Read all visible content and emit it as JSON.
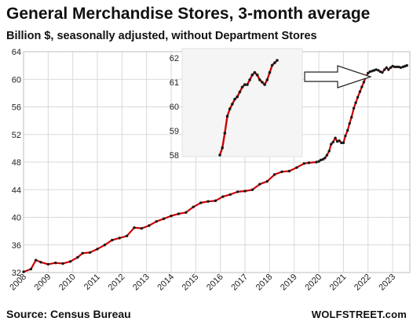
{
  "title": "General Merchandise Stores, 3-month average",
  "subtitle": "Billion $, seasonally adjusted, without Department Stores",
  "source": "Source: Census Bureau",
  "brand": "WOLFSTREET.com",
  "colors": {
    "line": "#cc0000",
    "markers": "#1a1a1a",
    "grid": "#d9d9d9",
    "inset_bg": "#f5f5f5"
  },
  "chart_data": [
    {
      "type": "line",
      "title": "General Merchandise Stores, 3-month average",
      "ylabel": "Billion $, seasonally adjusted, without Department Stores",
      "xlim": [
        2008,
        2023.7
      ],
      "ylim": [
        32,
        64
      ],
      "y_ticks": [
        32,
        36,
        40,
        44,
        48,
        52,
        56,
        60,
        64
      ],
      "x_ticks": [
        "2008",
        "2009",
        "2010",
        "2011",
        "2012",
        "2013",
        "2014",
        "2015",
        "2016",
        "2017",
        "2018",
        "2019",
        "2020",
        "2021",
        "2022",
        "2023"
      ],
      "grid": true,
      "x": [
        2008.0,
        2008.3,
        2008.5,
        2008.7,
        2009.0,
        2009.3,
        2009.6,
        2009.9,
        2010.2,
        2010.4,
        2010.7,
        2011.0,
        2011.3,
        2011.6,
        2011.9,
        2012.2,
        2012.5,
        2012.8,
        2013.1,
        2013.4,
        2013.7,
        2014.0,
        2014.3,
        2014.6,
        2014.9,
        2015.2,
        2015.5,
        2015.8,
        2016.1,
        2016.4,
        2016.7,
        2017.0,
        2017.3,
        2017.6,
        2017.9,
        2018.2,
        2018.5,
        2018.8,
        2019.1,
        2019.4,
        2019.6,
        2019.9,
        2020.0,
        2020.08,
        2020.17,
        2020.25,
        2020.33,
        2020.42,
        2020.5,
        2020.58,
        2020.67,
        2020.75,
        2020.83,
        2020.92,
        2021.0,
        2021.08,
        2021.17,
        2021.25,
        2021.33,
        2021.42,
        2021.5,
        2021.58,
        2021.67,
        2021.75,
        2021.83,
        2021.92,
        2022.0,
        2022.08,
        2022.17,
        2022.25,
        2022.33,
        2022.42,
        2022.5,
        2022.58,
        2022.67,
        2022.75,
        2022.83,
        2022.92,
        2023.0,
        2023.08,
        2023.17,
        2023.25,
        2023.33,
        2023.42,
        2023.5,
        2023.58
      ],
      "values": [
        32.1,
        32.5,
        33.8,
        33.5,
        33.2,
        33.4,
        33.3,
        33.6,
        34.2,
        34.8,
        34.9,
        35.4,
        36.0,
        36.7,
        37.0,
        37.3,
        38.5,
        38.4,
        38.8,
        39.4,
        39.8,
        40.2,
        40.5,
        40.7,
        41.5,
        42.1,
        42.3,
        42.4,
        43.0,
        43.3,
        43.7,
        43.8,
        44.0,
        44.8,
        45.2,
        46.2,
        46.6,
        46.7,
        47.2,
        47.8,
        47.9,
        48.0,
        48.1,
        48.3,
        48.4,
        48.6,
        49.0,
        49.6,
        50.6,
        50.9,
        51.5,
        51.0,
        51.1,
        50.8,
        50.8,
        51.8,
        52.6,
        53.6,
        54.5,
        55.8,
        56.6,
        57.4,
        58.2,
        58.9,
        59.6,
        60.4,
        60.9,
        61.1,
        61.2,
        61.3,
        61.4,
        61.3,
        61.1,
        61.0,
        61.4,
        61.7,
        61.4,
        61.7,
        61.9,
        61.8,
        61.8,
        61.8,
        61.7,
        61.8,
        61.9,
        62.0
      ]
    },
    {
      "type": "line",
      "title": "",
      "ylim": [
        58,
        62
      ],
      "y_ticks": [
        58,
        59,
        60,
        61,
        62
      ],
      "grid": false,
      "annotation": "arrow pointing from inset to 2022-2023 segment of main line",
      "values": [
        58.0,
        58.3,
        58.9,
        59.6,
        59.9,
        60.1,
        60.3,
        60.4,
        60.6,
        60.8,
        60.9,
        60.9,
        61.1,
        61.3,
        61.4,
        61.3,
        61.1,
        61.0,
        60.9,
        61.1,
        61.4,
        61.7,
        61.8,
        61.9
      ]
    }
  ]
}
